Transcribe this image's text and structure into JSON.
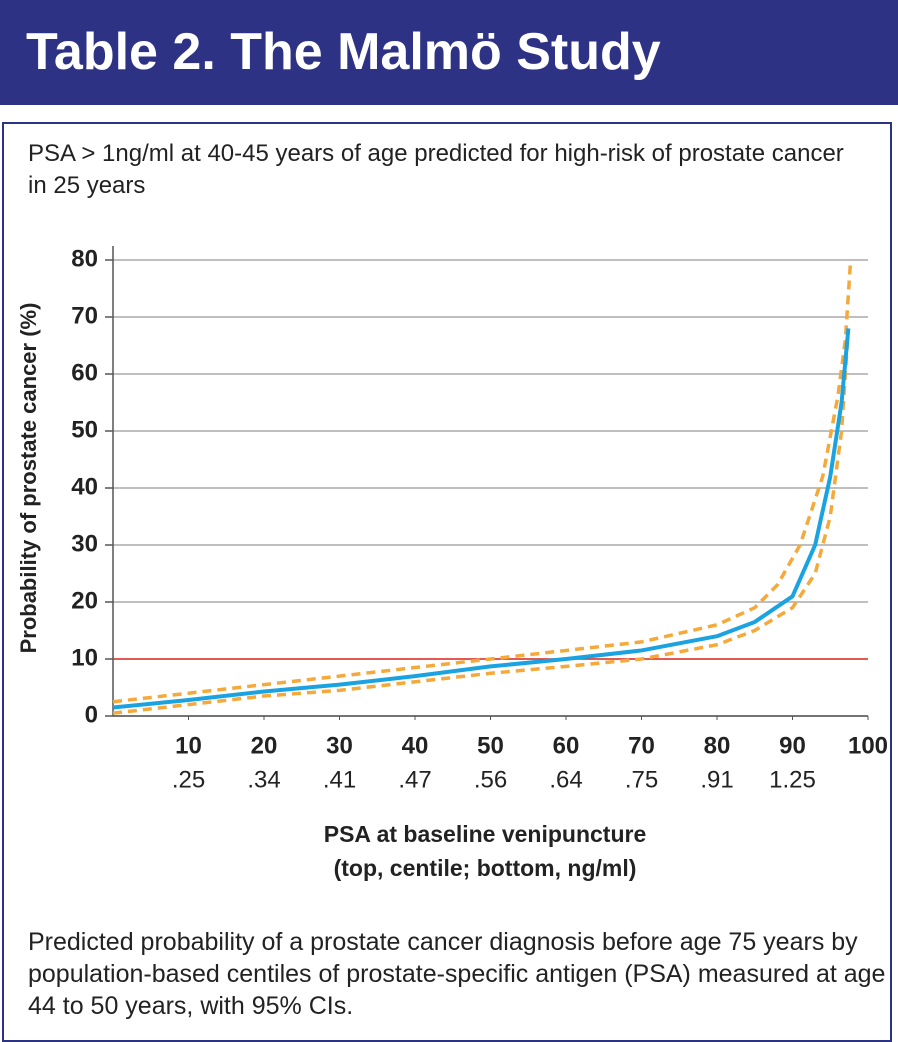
{
  "header": {
    "title": "Table 2. The Malmö Study"
  },
  "chart_data": {
    "type": "line",
    "subtitle": "PSA > 1ng/ml at 40-45 years of age predicted for high-risk of prostate cancer in 25 years",
    "y_label": "Probability of prostate cancer (%)",
    "x_label": [
      "PSA at baseline venipuncture",
      "(top, centile; bottom, ng/ml)"
    ],
    "xlim": [
      0,
      100
    ],
    "ylim": [
      0,
      80
    ],
    "xticks": [
      10,
      20,
      30,
      40,
      50,
      60,
      70,
      80,
      90,
      100
    ],
    "xticks_secondary": [
      ".25",
      ".34",
      ".41",
      ".47",
      ".56",
      ".64",
      ".75",
      ".91",
      "1.25"
    ],
    "yticks": [
      0,
      10,
      20,
      30,
      40,
      50,
      60,
      70,
      80
    ],
    "grid": true,
    "reference_line": {
      "value": 10,
      "color": "#e8302a"
    },
    "series": [
      {
        "color": "#f4a93a",
        "dashed": true,
        "x": [
          0,
          10,
          20,
          30,
          40,
          50,
          60,
          70,
          80,
          85,
          88,
          91,
          94,
          96,
          97,
          97.7
        ],
        "values": [
          2.5,
          4,
          5.5,
          7,
          8.5,
          10,
          11.5,
          13,
          16,
          19,
          23,
          30,
          42,
          56,
          66,
          80
        ]
      },
      {
        "color": "#f4a93a",
        "dashed": true,
        "x": [
          0,
          10,
          20,
          30,
          40,
          50,
          60,
          70,
          80,
          85,
          90,
          93,
          95,
          96.5,
          97.3
        ],
        "values": [
          0.5,
          2,
          3.5,
          4.5,
          6,
          7.5,
          8.7,
          10,
          12.5,
          15,
          19,
          25,
          35,
          50,
          66
        ]
      },
      {
        "color": "#1aa3e0",
        "dashed": false,
        "x": [
          0,
          10,
          20,
          30,
          40,
          50,
          60,
          70,
          80,
          85,
          90,
          93,
          95,
          96.5,
          97.4
        ],
        "values": [
          1.5,
          2.8,
          4.3,
          5.5,
          7,
          8.7,
          10,
          11.5,
          14,
          16.5,
          21,
          30,
          42,
          55,
          68
        ]
      }
    ],
    "caption": "Predicted probability of a prostate cancer diagnosis before age 75 years by population-based centiles of prostate-specific antigen (PSA) measured at age 44 to 50 years, with 95% CIs."
  }
}
